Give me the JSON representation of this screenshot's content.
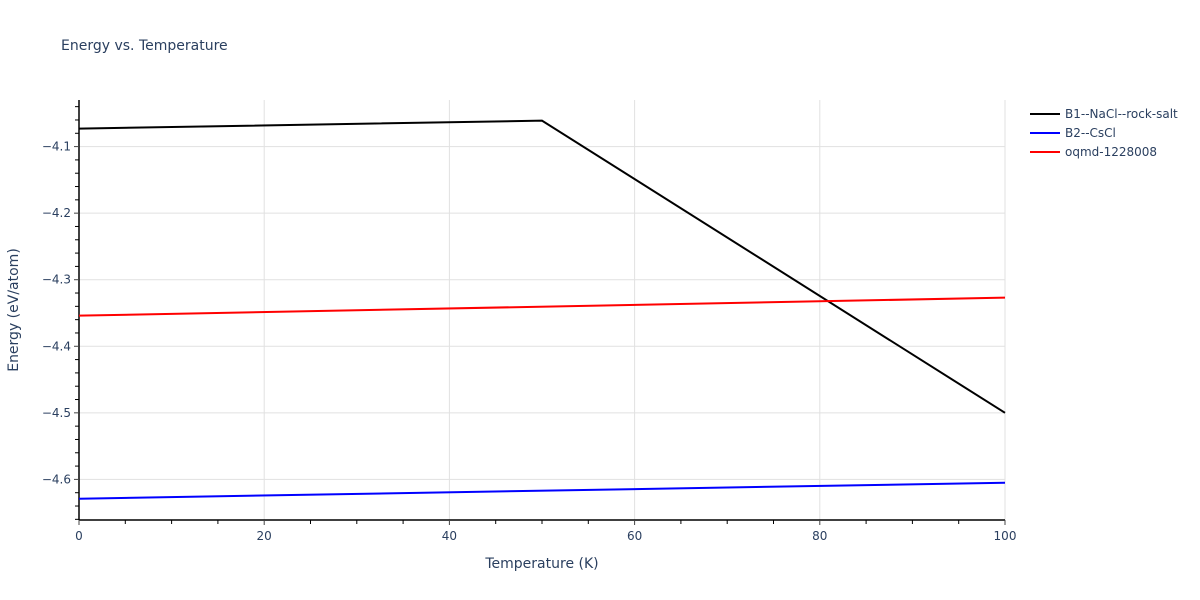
{
  "chart_data": {
    "type": "line",
    "title": "Energy vs. Temperature",
    "xlabel": "Temperature (K)",
    "ylabel": "Energy (eV/atom)",
    "xlim": [
      0,
      100
    ],
    "ylim": [
      -4.661,
      -4.03
    ],
    "x_ticks": [
      0,
      20,
      40,
      60,
      80,
      100
    ],
    "y_ticks": [
      -4.1,
      -4.2,
      -4.3,
      -4.4,
      -4.5,
      -4.6
    ],
    "y_tick_labels": [
      "−4.1",
      "−4.2",
      "−4.3",
      "−4.4",
      "−4.5",
      "−4.6"
    ],
    "grid": true,
    "legend_position": "right-top",
    "series": [
      {
        "name": "B1--NaCl--rock-salt",
        "color": "#000000",
        "x": [
          0,
          50,
          100
        ],
        "y": [
          -4.073,
          -4.061,
          -4.5
        ]
      },
      {
        "name": "B2--CsCl",
        "color": "#0000ff",
        "x": [
          0,
          100
        ],
        "y": [
          -4.629,
          -4.605
        ]
      },
      {
        "name": "oqmd-1228008",
        "color": "#ff0000",
        "x": [
          0,
          100
        ],
        "y": [
          -4.354,
          -4.327
        ]
      }
    ]
  }
}
